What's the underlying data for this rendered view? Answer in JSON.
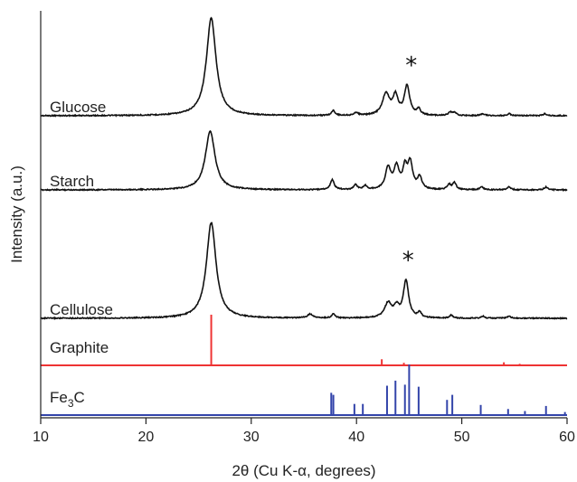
{
  "chart_data": {
    "type": "line",
    "xlabel": "2θ (Cu K-α, degrees)",
    "ylabel": "Intensity (a.u.)",
    "xlim": [
      10,
      60
    ],
    "xticks": [
      10,
      20,
      30,
      40,
      50,
      60
    ],
    "grid": false,
    "series": [
      {
        "name": "Glucose",
        "color": "#111111",
        "baseline": 0.8,
        "star_at": 45.2,
        "peaks": [
          [
            26.2,
            1.0,
            0.55
          ],
          [
            37.8,
            0.05,
            0.2
          ],
          [
            40.0,
            0.03,
            0.2
          ],
          [
            42.8,
            0.22,
            0.4
          ],
          [
            43.7,
            0.19,
            0.3
          ],
          [
            44.8,
            0.3,
            0.3
          ],
          [
            45.9,
            0.06,
            0.2
          ],
          [
            48.9,
            0.03,
            0.2
          ],
          [
            49.3,
            0.03,
            0.2
          ],
          [
            52.0,
            0.02,
            0.2
          ],
          [
            54.5,
            0.02,
            0.2
          ],
          [
            57.9,
            0.02,
            0.2
          ]
        ]
      },
      {
        "name": "Starch",
        "color": "#111111",
        "baseline": 0.55,
        "peaks": [
          [
            26.1,
            0.6,
            0.55
          ],
          [
            37.7,
            0.1,
            0.22
          ],
          [
            39.9,
            0.05,
            0.2
          ],
          [
            40.8,
            0.04,
            0.2
          ],
          [
            43.0,
            0.22,
            0.3
          ],
          [
            43.8,
            0.22,
            0.3
          ],
          [
            44.6,
            0.2,
            0.25
          ],
          [
            45.1,
            0.26,
            0.28
          ],
          [
            46.0,
            0.12,
            0.25
          ],
          [
            48.8,
            0.05,
            0.2
          ],
          [
            49.3,
            0.07,
            0.2
          ],
          [
            51.9,
            0.03,
            0.2
          ],
          [
            54.5,
            0.03,
            0.2
          ],
          [
            58.0,
            0.03,
            0.2
          ]
        ]
      },
      {
        "name": "Cellulose",
        "color": "#111111",
        "baseline": 0.3,
        "star_at": 44.9,
        "peaks": [
          [
            26.2,
            0.98,
            0.55
          ],
          [
            35.6,
            0.04,
            0.3
          ],
          [
            37.8,
            0.04,
            0.2
          ],
          [
            43.0,
            0.15,
            0.4
          ],
          [
            43.8,
            0.1,
            0.3
          ],
          [
            44.7,
            0.38,
            0.3
          ],
          [
            46.0,
            0.05,
            0.2
          ],
          [
            49.0,
            0.03,
            0.2
          ],
          [
            52.0,
            0.02,
            0.2
          ],
          [
            54.5,
            0.02,
            0.2
          ]
        ]
      }
    ],
    "references": [
      {
        "name": "Graphite",
        "color": "#ee3333",
        "sticks": [
          [
            26.2,
            1.0
          ],
          [
            42.4,
            0.12
          ],
          [
            44.5,
            0.05
          ],
          [
            54.0,
            0.06
          ],
          [
            55.5,
            0.03
          ]
        ]
      },
      {
        "name": "Fe3C",
        "label_main": "Fe",
        "label_sub": "3",
        "label_tail": "C",
        "color": "#3344aa",
        "sticks": [
          [
            37.6,
            0.44
          ],
          [
            37.8,
            0.4
          ],
          [
            39.8,
            0.22
          ],
          [
            40.6,
            0.22
          ],
          [
            42.9,
            0.58
          ],
          [
            43.7,
            0.68
          ],
          [
            44.6,
            0.6
          ],
          [
            45.0,
            1.0
          ],
          [
            45.9,
            0.56
          ],
          [
            48.6,
            0.3
          ],
          [
            49.1,
            0.4
          ],
          [
            51.8,
            0.2
          ],
          [
            54.4,
            0.12
          ],
          [
            56.0,
            0.08
          ],
          [
            58.0,
            0.18
          ],
          [
            59.8,
            0.06
          ]
        ]
      }
    ]
  }
}
